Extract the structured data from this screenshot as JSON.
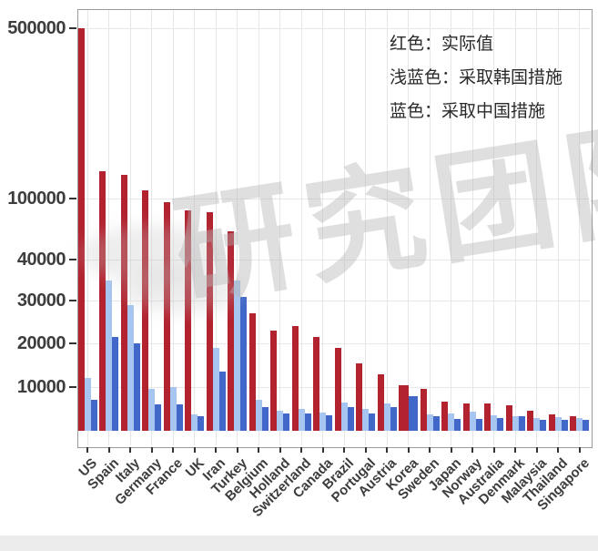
{
  "legend": {
    "line1": "红色：实际值",
    "line2": "浅蓝色：采取韩国措施",
    "line3": "蓝色：采取中国措施"
  },
  "watermark_text": "研究团队",
  "colors": {
    "actual_red": "#b2222f",
    "korea_light_blue": "#a6c6f1",
    "china_blue": "#4167c9",
    "axis_text": "#3d3d3d",
    "grid": "#e7e7e7",
    "panel_border": "#9a9a9a",
    "footer_strip": "#ececec"
  },
  "chart_data": {
    "type": "bar",
    "title": "",
    "xlabel": "",
    "ylabel": "",
    "categories": [
      "US",
      "Spain",
      "Italy",
      "Germany",
      "France",
      "UK",
      "Iran",
      "Turkey",
      "Belgium",
      "Holland",
      "Switzerland",
      "Canada",
      "Brazil",
      "Portugal",
      "Austria",
      "Korea",
      "Sweden",
      "Japan",
      "Norway",
      "Australia",
      "Denmark",
      "Malaysia",
      "Thailand",
      "Singapore"
    ],
    "series": [
      {
        "name": "实际值",
        "color_key": "actual_red",
        "values": [
          500000,
          165000,
          155000,
          120000,
          96000,
          88000,
          87000,
          68000,
          27000,
          23000,
          24000,
          21500,
          19000,
          15500,
          13000,
          10400,
          9500,
          6700,
          6200,
          6300,
          5800,
          4600,
          3700,
          3400
        ]
      },
      {
        "name": "采取韩国措施",
        "color_key": "korea_light_blue",
        "values": [
          12000,
          35000,
          29000,
          9500,
          10000,
          3800,
          19000,
          35000,
          7000,
          4600,
          5000,
          4200,
          6500,
          5000,
          6200,
          null,
          3800,
          4000,
          4400,
          3500,
          3400,
          2900,
          3100,
          2900
        ]
      },
      {
        "name": "采取中国措施",
        "color_key": "china_blue",
        "values": [
          7000,
          21500,
          20000,
          6000,
          6000,
          3400,
          13500,
          31000,
          5500,
          4000,
          4000,
          3500,
          5500,
          4000,
          5400,
          8000,
          3300,
          2800,
          2800,
          2900,
          3300,
          2600,
          2600,
          2600
        ]
      }
    ],
    "y_axis": {
      "ticks": [
        10000,
        20000,
        30000,
        40000,
        100000,
        500000
      ],
      "scale": "nonlinear-compressed",
      "grid": true
    },
    "legend_position": "top-right"
  }
}
